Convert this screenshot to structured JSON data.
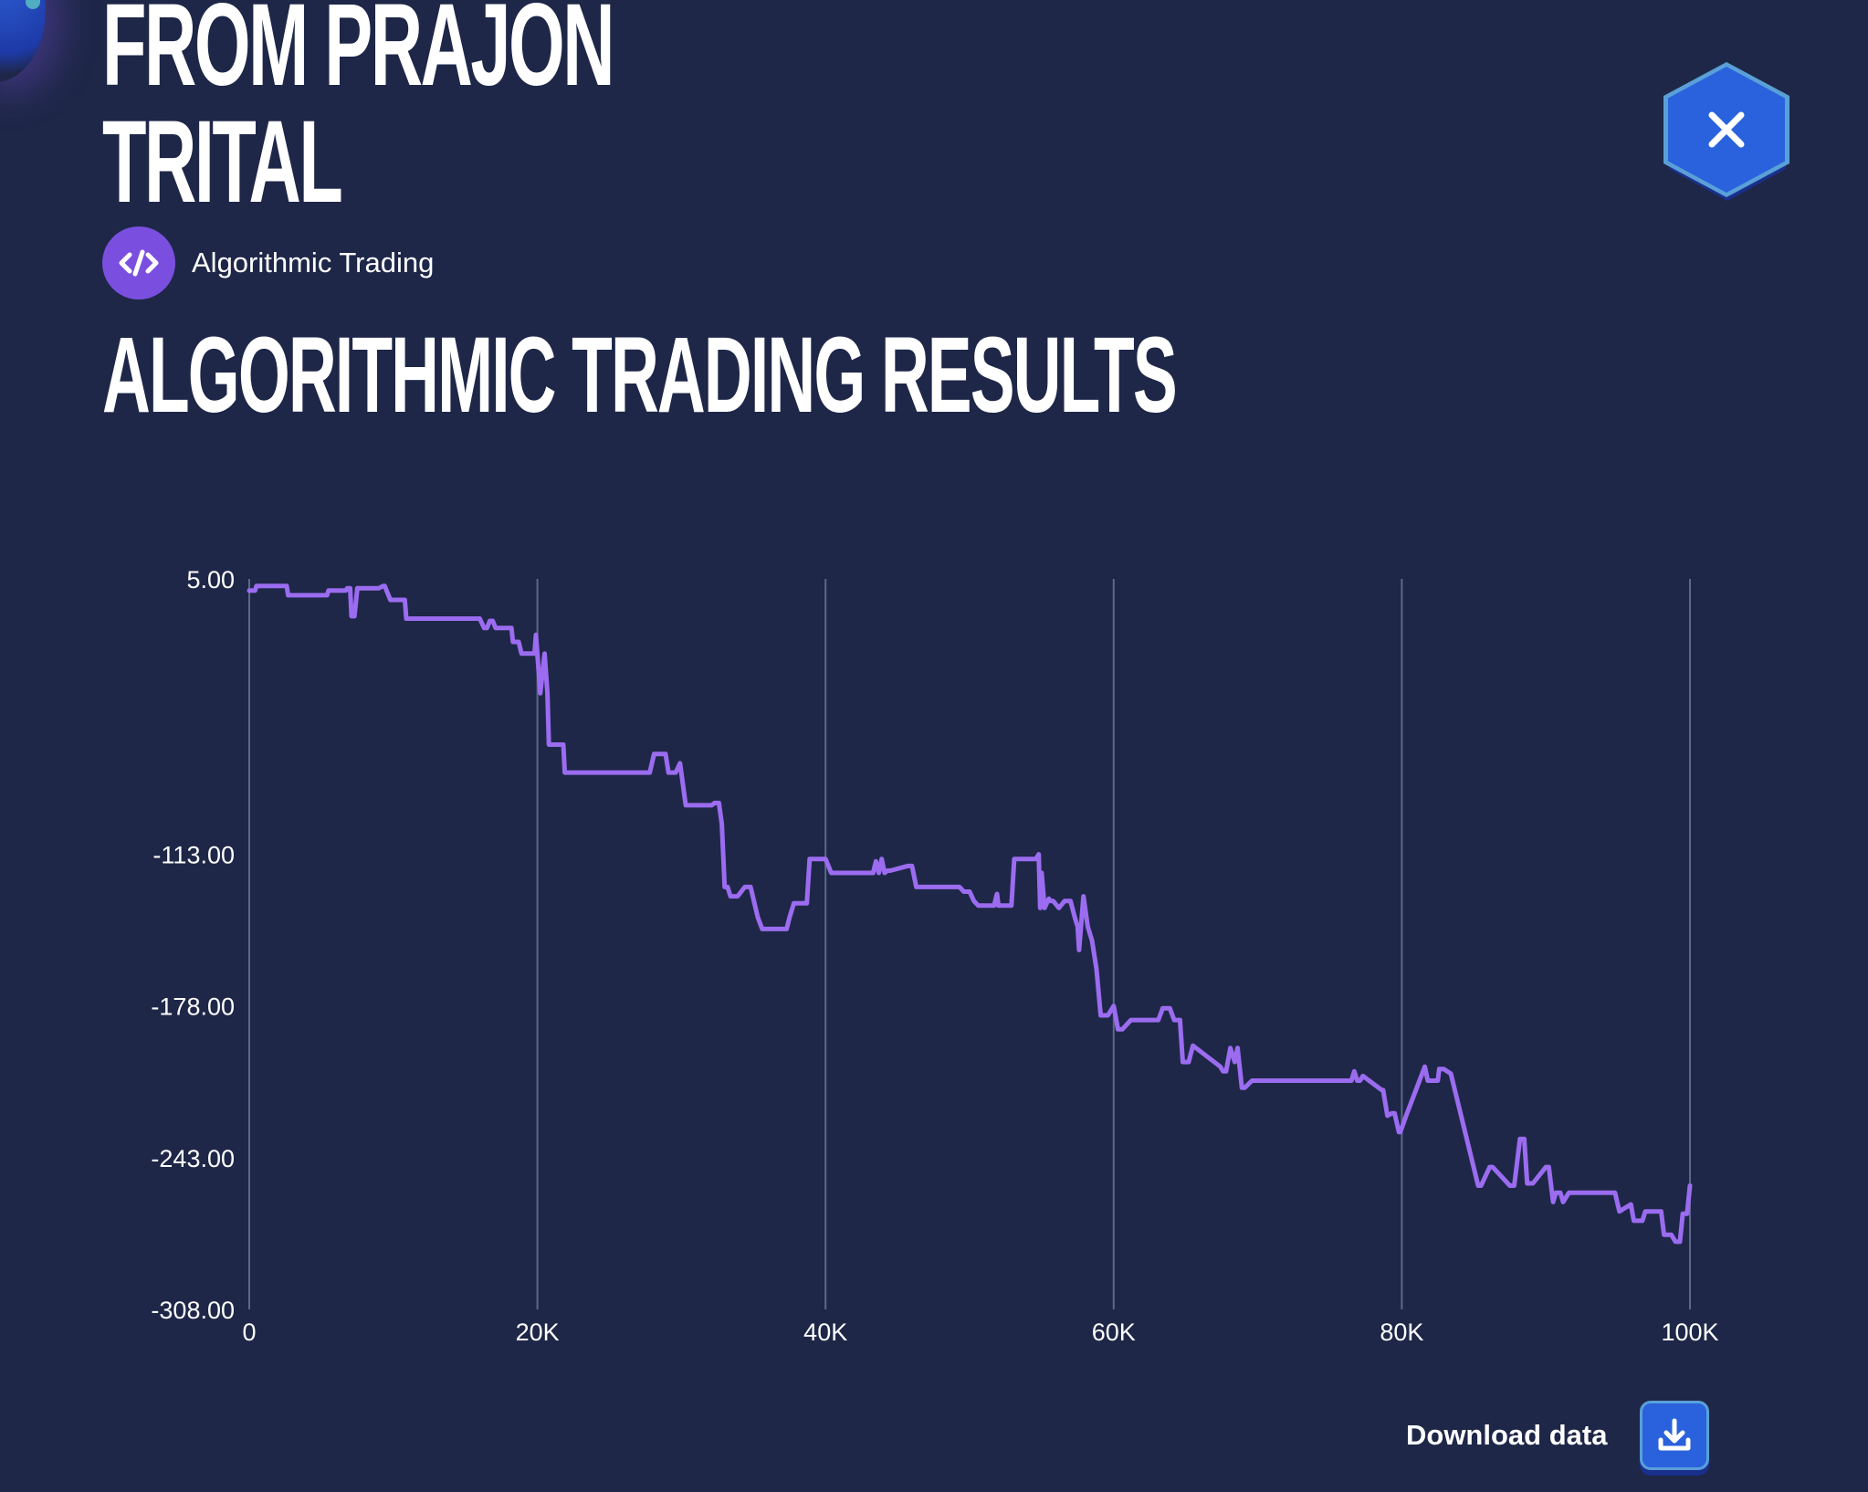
{
  "header": {
    "title_lines": [
      "FROM PRAJON",
      "TRITAL"
    ],
    "close_icon": "close-icon"
  },
  "category": {
    "icon": "code-icon",
    "label": "Algorithmic Trading"
  },
  "section": {
    "title": "ALGORITHMIC TRADING RESULTS"
  },
  "footer": {
    "download_label": "Download data",
    "download_icon": "download-icon"
  },
  "colors": {
    "background": "#1e2748",
    "line": "#9b6cf0",
    "accent": "#2a62dd",
    "category_badge": "#7a4fe0"
  },
  "chart_data": {
    "type": "line",
    "title": "",
    "xlabel": "",
    "ylabel": "",
    "xlim": [
      0,
      100000
    ],
    "ylim": [
      -308,
      5
    ],
    "x_ticks": [
      {
        "value": 0,
        "label": "0"
      },
      {
        "value": 20000,
        "label": "20K"
      },
      {
        "value": 40000,
        "label": "40K"
      },
      {
        "value": 60000,
        "label": "60K"
      },
      {
        "value": 80000,
        "label": "80K"
      },
      {
        "value": 100000,
        "label": "100K"
      }
    ],
    "y_ticks": [
      {
        "value": 5,
        "label": "5.00"
      },
      {
        "value": -113,
        "label": "-113.00"
      },
      {
        "value": -178,
        "label": "-178.00"
      },
      {
        "value": -243,
        "label": "-243.00"
      },
      {
        "value": -308,
        "label": "-308.00"
      }
    ],
    "vertical_grid": true,
    "series": [
      {
        "x": [
          0,
          400,
          500,
          2600,
          2700,
          5400,
          5500,
          6700,
          6800,
          7000,
          7100,
          7300,
          7500,
          9000,
          9300,
          9400,
          9800,
          10800,
          10900,
          16000,
          16300,
          16500,
          16700,
          16900,
          17100,
          18100,
          18200,
          18300,
          18700,
          18900,
          19800,
          19900,
          20200,
          20500,
          20700,
          20800,
          21000,
          21800,
          21900,
          22000,
          27800,
          28100,
          28900,
          29100,
          29600,
          29900,
          30300,
          30700,
          32100,
          32300,
          32600,
          32800,
          33000,
          33200,
          33400,
          33900,
          34400,
          34800,
          35300,
          35600,
          37300,
          37500,
          37800,
          38700,
          38900,
          40000,
          40400,
          43300,
          43500,
          43700,
          43900,
          44100,
          44300,
          44500,
          45700,
          46000,
          46300,
          49300,
          49600,
          50000,
          50300,
          50600,
          51700,
          51900,
          52000,
          52100,
          52900,
          53100,
          54600,
          54800,
          54900,
          55000,
          55200,
          55500,
          55600,
          55800,
          56200,
          56600,
          57000,
          57300,
          57500,
          57600,
          57900,
          58200,
          58500,
          58800,
          59100,
          59600,
          60000,
          60300,
          60600,
          61200,
          62800,
          63100,
          63400,
          63900,
          64200,
          64600,
          64800,
          65200,
          65500,
          67400,
          67600,
          67800,
          68100,
          68400,
          68600,
          68900,
          69100,
          69600,
          75100,
          75300,
          75700,
          76500,
          76700,
          76900,
          77100,
          77300,
          78600,
          78700,
          79000,
          79300,
          79500,
          79800,
          79900,
          80300,
          81600,
          81800,
          82500,
          82600,
          82900,
          83400,
          85300,
          85500,
          86100,
          86300,
          87500,
          87800,
          88200,
          88500,
          88700,
          88900,
          89100,
          90000,
          90200,
          90500,
          90700,
          91000,
          91200,
          91600,
          91800,
          94800,
          95100,
          95900,
          96100,
          96700,
          96900,
          98000,
          98200,
          98400,
          98700,
          99000,
          99300,
          99500,
          99800,
          100000
        ],
        "values": [
          0,
          0,
          2,
          2,
          -2,
          -2,
          0,
          0,
          1,
          1,
          -11,
          -11,
          1,
          1,
          2,
          2,
          -4,
          -4,
          -12,
          -12,
          -16,
          -16,
          -13,
          -13,
          -16,
          -16,
          -16,
          -22,
          -22,
          -27,
          -27,
          -19,
          -44,
          -27,
          -44,
          -66,
          -66,
          -66,
          -78,
          -78,
          -78,
          -70,
          -70,
          -78,
          -78,
          -74,
          -92,
          -92,
          -92,
          -91,
          -91,
          -100,
          -127,
          -127,
          -131,
          -131,
          -127,
          -127,
          -140,
          -145,
          -145,
          -140,
          -134,
          -134,
          -115,
          -115,
          -121,
          -121,
          -116,
          -121,
          -115,
          -121,
          -120,
          -120,
          -118,
          -118,
          -127,
          -127,
          -129,
          -129,
          -133,
          -135,
          -135,
          -130,
          -135,
          -135,
          -135,
          -115,
          -115,
          -113,
          -136,
          -121,
          -136,
          -132,
          -133,
          -133,
          -136,
          -133,
          -133,
          -140,
          -144,
          -154,
          -131,
          -144,
          -150,
          -162,
          -182,
          -182,
          -178,
          -188,
          -188,
          -184,
          -184,
          -184,
          -179,
          -179,
          -184,
          -184,
          -202,
          -202,
          -195,
          -204,
          -206,
          -206,
          -196,
          -202,
          -196,
          -213,
          -213,
          -210,
          -210,
          -210,
          -210,
          -210,
          -206,
          -210,
          -210,
          -208,
          -214,
          -214,
          -225,
          -224,
          -224,
          -232,
          -232,
          -225,
          -204,
          -210,
          -210,
          -205,
          -205,
          -207,
          -255,
          -255,
          -247,
          -247,
          -255,
          -255,
          -235,
          -235,
          -254,
          -254,
          -254,
          -247,
          -247,
          -262,
          -258,
          -258,
          -262,
          -258,
          -258,
          -258,
          -266,
          -263,
          -270,
          -270,
          -266,
          -266,
          -276,
          -276,
          -276,
          -279,
          -279,
          -267,
          -267,
          -255
        ]
      }
    ]
  }
}
